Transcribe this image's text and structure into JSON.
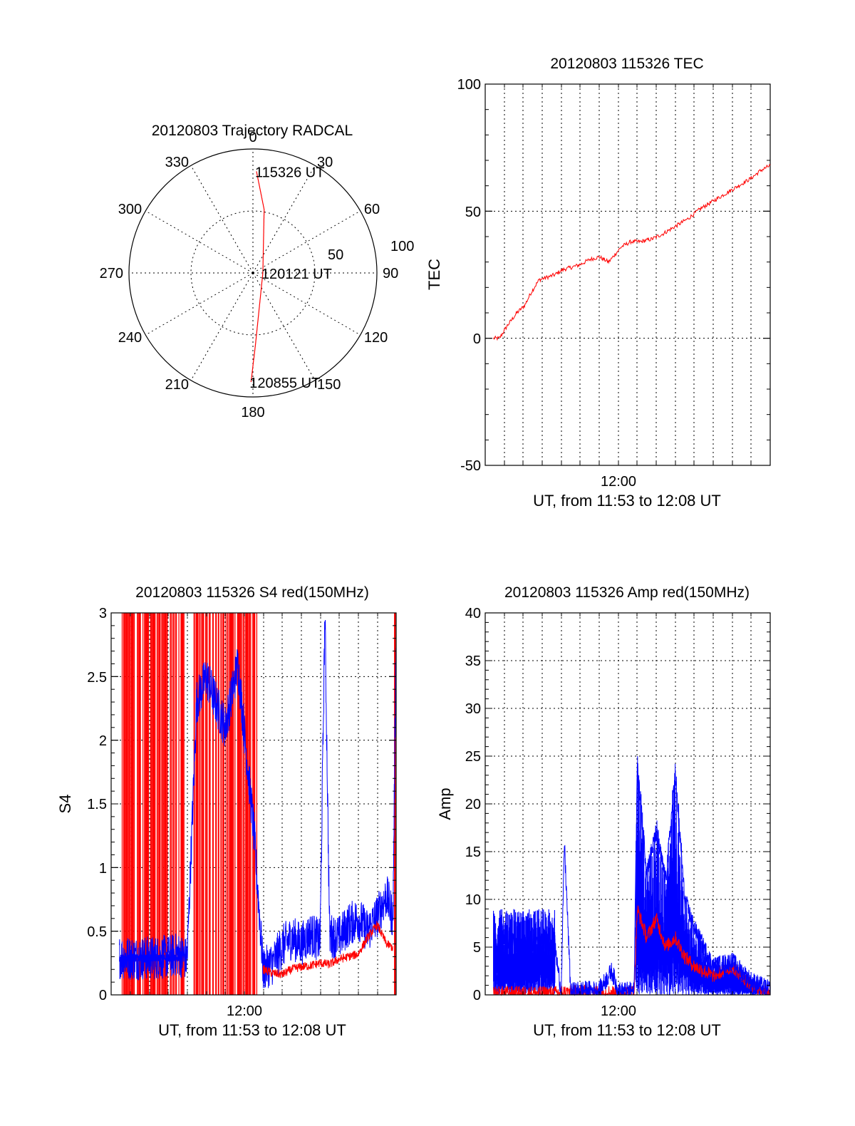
{
  "colors": {
    "red": "#ff0000",
    "blue": "#0000ff",
    "axes": "#000000",
    "background": "#ffffff"
  },
  "chart_data": [
    {
      "id": "trajectory",
      "type": "polar",
      "title": "20120803 Trajectory RADCAL",
      "angle_labels": [
        "0",
        "30",
        "60",
        "90",
        "120",
        "150",
        "180",
        "210",
        "240",
        "270",
        "300",
        "330"
      ],
      "radius_labels": [
        "50",
        "100"
      ],
      "rmax": 100,
      "grid": true,
      "series": [
        {
          "color": "red",
          "points": [
            [
              2,
              82
            ],
            [
              10,
              52
            ],
            [
              90,
              8
            ],
            [
              178,
              58
            ],
            [
              181,
              88
            ]
          ]
        }
      ],
      "annotations": [
        {
          "text": "115326 UT",
          "at": [
            2,
            82
          ]
        },
        {
          "text": "120121 UT",
          "at": [
            90,
            8
          ]
        },
        {
          "text": "120855 UT",
          "at": [
            181,
            88
          ]
        }
      ]
    },
    {
      "id": "tec",
      "type": "line",
      "title": "20120803 115326 TEC",
      "xlabel": "UT, from 11:53 to 12:08 UT",
      "ylabel": "TEC",
      "xlim": [
        "11:53",
        "12:08"
      ],
      "ylim": [
        -50,
        100
      ],
      "y_ticks": [
        "100",
        "50",
        "0",
        "-50"
      ],
      "x_tick_labels": [
        "12:00"
      ],
      "grid": true,
      "series": [
        {
          "color": "red",
          "x": [
            "11:53:26",
            "11:53:45",
            "11:54:10",
            "11:54:40",
            "11:55:05",
            "11:55:25",
            "11:55:50",
            "11:56:15",
            "11:56:40",
            "11:57:05",
            "11:57:35",
            "11:58:00",
            "11:58:30",
            "11:59:00",
            "11:59:30",
            "11:59:50",
            "12:00:10",
            "12:00:40",
            "12:01:10",
            "12:01:45",
            "12:02:20",
            "12:03:00",
            "12:03:40",
            "12:04:20",
            "12:05:00",
            "12:05:40",
            "12:06:20",
            "12:07:00",
            "12:07:30",
            "12:08:00"
          ],
          "y": [
            0,
            0,
            5,
            10,
            13,
            18,
            23,
            24,
            25,
            27,
            28,
            29,
            31,
            32,
            30,
            33,
            36,
            38,
            38,
            39,
            41,
            44,
            47,
            51,
            54,
            57,
            60,
            63,
            66,
            68
          ]
        }
      ]
    },
    {
      "id": "s4",
      "type": "line",
      "title": "20120803 115326 S4 red(150MHz)",
      "xlabel": "UT, from 11:53 to 12:08 UT",
      "ylabel": "S4",
      "xlim": [
        "11:53",
        "12:08"
      ],
      "ylim": [
        0,
        3
      ],
      "y_ticks": [
        "3",
        "2.5",
        "2",
        "1.5",
        "1",
        "0.5",
        "0"
      ],
      "x_tick_labels": [
        "12:00"
      ],
      "grid": true,
      "series": [
        {
          "color": "blue",
          "x": [
            "11:53:26",
            "11:54:00",
            "11:55:00",
            "11:56:00",
            "11:56:30",
            "11:57:00",
            "11:57:30",
            "11:58:00",
            "11:59:00",
            "11:59:40",
            "12:00:30",
            "12:01:00",
            "12:01:30",
            "12:02:00",
            "12:02:30",
            "12:03:00",
            "12:03:30",
            "12:04:00",
            "12:04:15",
            "12:04:30",
            "12:05:00",
            "12:05:30",
            "12:06:00",
            "12:06:30",
            "12:07:00",
            "12:07:30",
            "12:07:50",
            "12:08:00"
          ],
          "y": [
            0.3,
            0.29,
            0.29,
            0.3,
            0.32,
            0.28,
            2.3,
            2.5,
            2.1,
            2.6,
            1.3,
            0.2,
            0.25,
            0.38,
            0.45,
            0.4,
            0.48,
            0.42,
            3.0,
            0.47,
            0.45,
            0.55,
            0.6,
            0.5,
            0.62,
            0.78,
            0.6,
            2.9
          ]
        },
        {
          "color": "red",
          "x": [
            "12:01:00",
            "12:01:30",
            "12:02:00",
            "12:02:30",
            "12:03:00",
            "12:03:30",
            "12:04:00",
            "12:04:30",
            "12:05:00",
            "12:05:30",
            "12:06:00",
            "12:06:30",
            "12:07:00",
            "12:07:30",
            "12:07:50"
          ],
          "y": [
            0.2,
            0.17,
            0.16,
            0.2,
            0.22,
            0.23,
            0.25,
            0.24,
            0.28,
            0.3,
            0.32,
            0.45,
            0.55,
            0.4,
            0.37
          ]
        }
      ]
    },
    {
      "id": "amp",
      "type": "line",
      "title": "20120803 115326 Amp red(150MHz)",
      "xlabel": "UT, from 11:53 to 12:08 UT",
      "ylabel": "Amp",
      "xlim": [
        "11:53",
        "12:08"
      ],
      "ylim": [
        0,
        40
      ],
      "y_ticks": [
        "40",
        "35",
        "30",
        "25",
        "20",
        "15",
        "10",
        "5",
        "0"
      ],
      "x_tick_labels": [
        "12:00"
      ],
      "grid": true,
      "series": [
        {
          "color": "blue",
          "x": [
            "11:53:26",
            "11:54:00",
            "11:55:00",
            "11:56:00",
            "11:56:40",
            "11:57:00",
            "11:57:10",
            "11:57:30",
            "11:58:00",
            "11:59:00",
            "11:59:40",
            "12:00:00",
            "12:00:50",
            "12:01:00",
            "12:01:30",
            "12:02:00",
            "12:02:30",
            "12:03:00",
            "12:03:30",
            "12:04:00",
            "12:05:00",
            "12:06:00",
            "12:07:00",
            "12:08:00"
          ],
          "y": [
            5,
            6,
            5,
            6,
            5,
            0.3,
            16,
            0.3,
            0.5,
            0.5,
            2.5,
            0.4,
            0.4,
            24,
            13,
            17,
            12,
            23,
            10,
            7,
            3,
            3.5,
            1.5,
            0.5
          ]
        },
        {
          "color": "red",
          "x": [
            "11:53:26",
            "11:56:40",
            "11:57:10",
            "12:00:50",
            "12:01:00",
            "12:01:30",
            "12:02:00",
            "12:02:30",
            "12:03:00",
            "12:03:30",
            "12:04:00",
            "12:05:00",
            "12:06:00",
            "12:07:00",
            "12:08:00"
          ],
          "y": [
            0.2,
            0.2,
            0.3,
            0.3,
            9,
            6,
            8,
            5,
            6,
            4,
            3,
            2,
            3,
            1,
            0.2
          ]
        }
      ]
    }
  ]
}
